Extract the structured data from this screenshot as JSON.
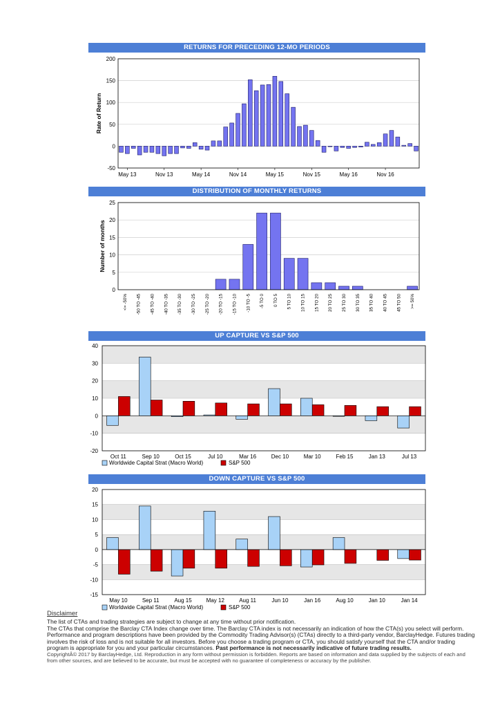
{
  "colors": {
    "header": "#4d7fd6",
    "bar_blue": "#7474f0",
    "light_blue": "#a8d2f7",
    "red": "#cc0000"
  },
  "charts": {
    "returns": {
      "header": "RETURNS FOR PRECEDING 12-MO PERIODS"
    },
    "distribution": {
      "header": "DISTRIBUTION OF MONTHLY RETURNS"
    },
    "up": {
      "header": "UP CAPTURE VS S&P 500",
      "legend": [
        "Worldwide Capital Strat (Macro World)",
        "S&P 500"
      ]
    },
    "down": {
      "header": "DOWN CAPTURE VS S&P 500",
      "legend": [
        "Worldwide Capital Strat (Macro World)",
        "S&P 500"
      ]
    }
  },
  "chart_data": [
    {
      "type": "bar",
      "title": "RETURNS FOR PRECEDING 12-MO PERIODS",
      "ylabel": "Rate of Return",
      "ylim": [
        -50,
        200
      ],
      "yticks": [
        -50,
        0,
        50,
        100,
        150,
        200
      ],
      "xtick_labels": [
        "May 13",
        "Nov 13",
        "May 14",
        "Nov 14",
        "May 15",
        "Nov 15",
        "May 16",
        "Nov 16"
      ],
      "xtick_index": [
        1,
        7,
        13,
        19,
        25,
        31,
        37,
        43
      ],
      "values": [
        -14,
        -17,
        -5,
        -20,
        -14,
        -14,
        -17,
        -22,
        -17,
        -17,
        -4,
        -5,
        8,
        -7,
        -9,
        12,
        12,
        44,
        53,
        75,
        97,
        152,
        127,
        140,
        141,
        160,
        148,
        120,
        89,
        45,
        48,
        36,
        13,
        -14,
        0,
        -11,
        -3,
        -5,
        -3,
        -2,
        9,
        4,
        8,
        28,
        36,
        21,
        2,
        6,
        -11
      ]
    },
    {
      "type": "bar",
      "title": "DISTRIBUTION OF MONTHLY RETURNS",
      "ylabel": "Number of months",
      "ylim": [
        0,
        25
      ],
      "yticks": [
        0,
        5,
        10,
        15,
        20,
        25
      ],
      "categories": [
        "<= -50%",
        "-50 TO -45",
        "-45 TO -40",
        "-40 TO -35",
        "-35 TO -30",
        "-30 TO -25",
        "-25 TO -20",
        "-20 TO -15",
        "-15 TO -10",
        "-10 TO -5",
        "-5 TO 0",
        "0 TO 5",
        "5 TO 10",
        "10 TO 15",
        "15 TO 20",
        "20 TO 25",
        "25 TO 30",
        "30 TO 35",
        "35 TO 40",
        "40 TO 45",
        "45 TO 50",
        ">= 50%"
      ],
      "values": [
        0,
        0,
        0,
        0,
        0,
        0,
        0,
        3,
        3,
        13,
        22,
        22,
        9,
        9,
        2,
        2,
        1,
        1,
        0,
        0,
        0,
        1
      ]
    },
    {
      "type": "bar",
      "title": "UP CAPTURE VS S&P 500",
      "ylim": [
        -20,
        40
      ],
      "yticks": [
        -20,
        -10,
        0,
        10,
        20,
        30,
        40
      ],
      "categories": [
        "Oct 11",
        "Sep 10",
        "Oct 15",
        "Jul 10",
        "Mar 16",
        "Dec 10",
        "Mar 10",
        "Feb 15",
        "Jan 13",
        "Jul 13"
      ],
      "series": [
        {
          "name": "Worldwide Capital Strat (Macro World)",
          "values": [
            -5.5,
            33.5,
            -0.5,
            0.5,
            -2,
            15.5,
            10,
            -0.3,
            -2.8,
            -7
          ]
        },
        {
          "name": "S&P 500",
          "values": [
            11,
            9,
            8.3,
            7.3,
            6.8,
            6.8,
            6.3,
            5.9,
            5.2,
            5.2
          ]
        }
      ]
    },
    {
      "type": "bar",
      "title": "DOWN CAPTURE VS S&P 500",
      "ylim": [
        -15,
        20
      ],
      "yticks": [
        -15,
        -10,
        -5,
        0,
        5,
        10,
        15,
        20
      ],
      "categories": [
        "May 10",
        "Sep 11",
        "Aug 15",
        "May 12",
        "Aug 11",
        "Jun 10",
        "Jan 16",
        "Aug 10",
        "Jan 10",
        "Jan 14"
      ],
      "series": [
        {
          "name": "Worldwide Capital Strat (Macro World)",
          "values": [
            4,
            14.5,
            -8.8,
            12.8,
            3.5,
            11,
            -5.8,
            4,
            0,
            -3
          ]
        },
        {
          "name": "S&P 500",
          "values": [
            -8.2,
            -7.2,
            -6.2,
            -6.2,
            -5.6,
            -5.4,
            -5.1,
            -4.6,
            -3.6,
            -3.5
          ]
        }
      ]
    }
  ],
  "disclaimer": {
    "title": "Disclaimer",
    "p1": "The list of CTAs and trading strategies are subject to change at any time without prior notification.",
    "p2": "The CTAs that comprise the Barclay CTA Index change over time.  The Barclay CTA index is not necessarily an indication of how the CTA(s) you select will perform.",
    "p3": "Performance and program descriptions have been provided by the Commodity Trading Advisor(s) (CTAs) directly to a third-party vendor, BarclayHedge. Futures trading involves the risk of loss and is not suitable for all investors.  Before you choose a trading program or CTA, you should satisfy yourself that the CTA and/or trading program is appropriate for you and your particular circumstances. ",
    "p3_bold": "Past performance is not necessarily indicative of future trading results.",
    "copyright": "CopyrightÂ© 2017 by BarclayHedge, Ltd. Reproduction in any form without permission is forbidden. Reports are based on information and data supplied by the subjects of each and from other sources, and are believed to be accurate, but must be accepted with no guarantee of completeness or accuracy by the publisher."
  }
}
